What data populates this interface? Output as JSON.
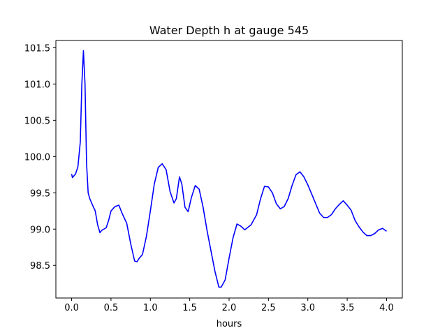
{
  "chart_data": {
    "type": "line",
    "title": "Water Depth h at gauge 545",
    "xlabel": "hours",
    "ylabel": "",
    "xlim": [
      -0.2,
      4.2
    ],
    "ylim": [
      98.05,
      101.6
    ],
    "xticks": [
      0.0,
      0.5,
      1.0,
      1.5,
      2.0,
      2.5,
      3.0,
      3.5,
      4.0
    ],
    "xtick_labels": [
      "0.0",
      "0.5",
      "1.0",
      "1.5",
      "2.0",
      "2.5",
      "3.0",
      "3.5",
      "4.0"
    ],
    "yticks": [
      98.5,
      99.0,
      99.5,
      100.0,
      100.5,
      101.0,
      101.5
    ],
    "ytick_labels": [
      "98.5",
      "99.0",
      "99.5",
      "100.0",
      "100.5",
      "101.0",
      "101.5"
    ],
    "grid": false,
    "series": [
      {
        "color": "#0000ff",
        "x": [
          0.0,
          0.01,
          0.05,
          0.08,
          0.11,
          0.13,
          0.15,
          0.17,
          0.19,
          0.21,
          0.23,
          0.27,
          0.3,
          0.33,
          0.36,
          0.38,
          0.41,
          0.44,
          0.47,
          0.5,
          0.55,
          0.6,
          0.64,
          0.7,
          0.75,
          0.8,
          0.83,
          0.86,
          0.9,
          0.95,
          1.0,
          1.05,
          1.1,
          1.15,
          1.2,
          1.25,
          1.3,
          1.33,
          1.37,
          1.4,
          1.44,
          1.48,
          1.52,
          1.57,
          1.62,
          1.67,
          1.72,
          1.77,
          1.82,
          1.87,
          1.9,
          1.95,
          2.0,
          2.05,
          2.1,
          2.15,
          2.2,
          2.28,
          2.35,
          2.4,
          2.45,
          2.5,
          2.55,
          2.6,
          2.65,
          2.7,
          2.75,
          2.8,
          2.85,
          2.9,
          2.95,
          3.0,
          3.05,
          3.1,
          3.15,
          3.2,
          3.25,
          3.3,
          3.35,
          3.4,
          3.45,
          3.5,
          3.55,
          3.6,
          3.65,
          3.7,
          3.75,
          3.8,
          3.85,
          3.9,
          3.95,
          4.0
        ],
        "y": [
          99.76,
          99.71,
          99.76,
          99.86,
          100.2,
          101.0,
          101.46,
          101.0,
          99.9,
          99.5,
          99.42,
          99.32,
          99.25,
          99.06,
          98.95,
          98.98,
          99.0,
          99.02,
          99.12,
          99.25,
          99.31,
          99.33,
          99.22,
          99.08,
          98.8,
          98.56,
          98.55,
          98.6,
          98.65,
          98.9,
          99.25,
          99.62,
          99.85,
          99.9,
          99.82,
          99.52,
          99.36,
          99.42,
          99.72,
          99.62,
          99.3,
          99.24,
          99.43,
          99.6,
          99.55,
          99.3,
          98.98,
          98.7,
          98.42,
          98.2,
          98.2,
          98.3,
          98.6,
          98.88,
          99.07,
          99.04,
          98.99,
          99.06,
          99.2,
          99.42,
          99.59,
          99.58,
          99.5,
          99.35,
          99.28,
          99.31,
          99.42,
          99.6,
          99.75,
          99.79,
          99.72,
          99.61,
          99.48,
          99.35,
          99.22,
          99.16,
          99.16,
          99.2,
          99.28,
          99.34,
          99.39,
          99.33,
          99.26,
          99.12,
          99.03,
          98.96,
          98.91,
          98.91,
          98.94,
          98.99,
          99.01,
          98.97
        ]
      }
    ]
  }
}
